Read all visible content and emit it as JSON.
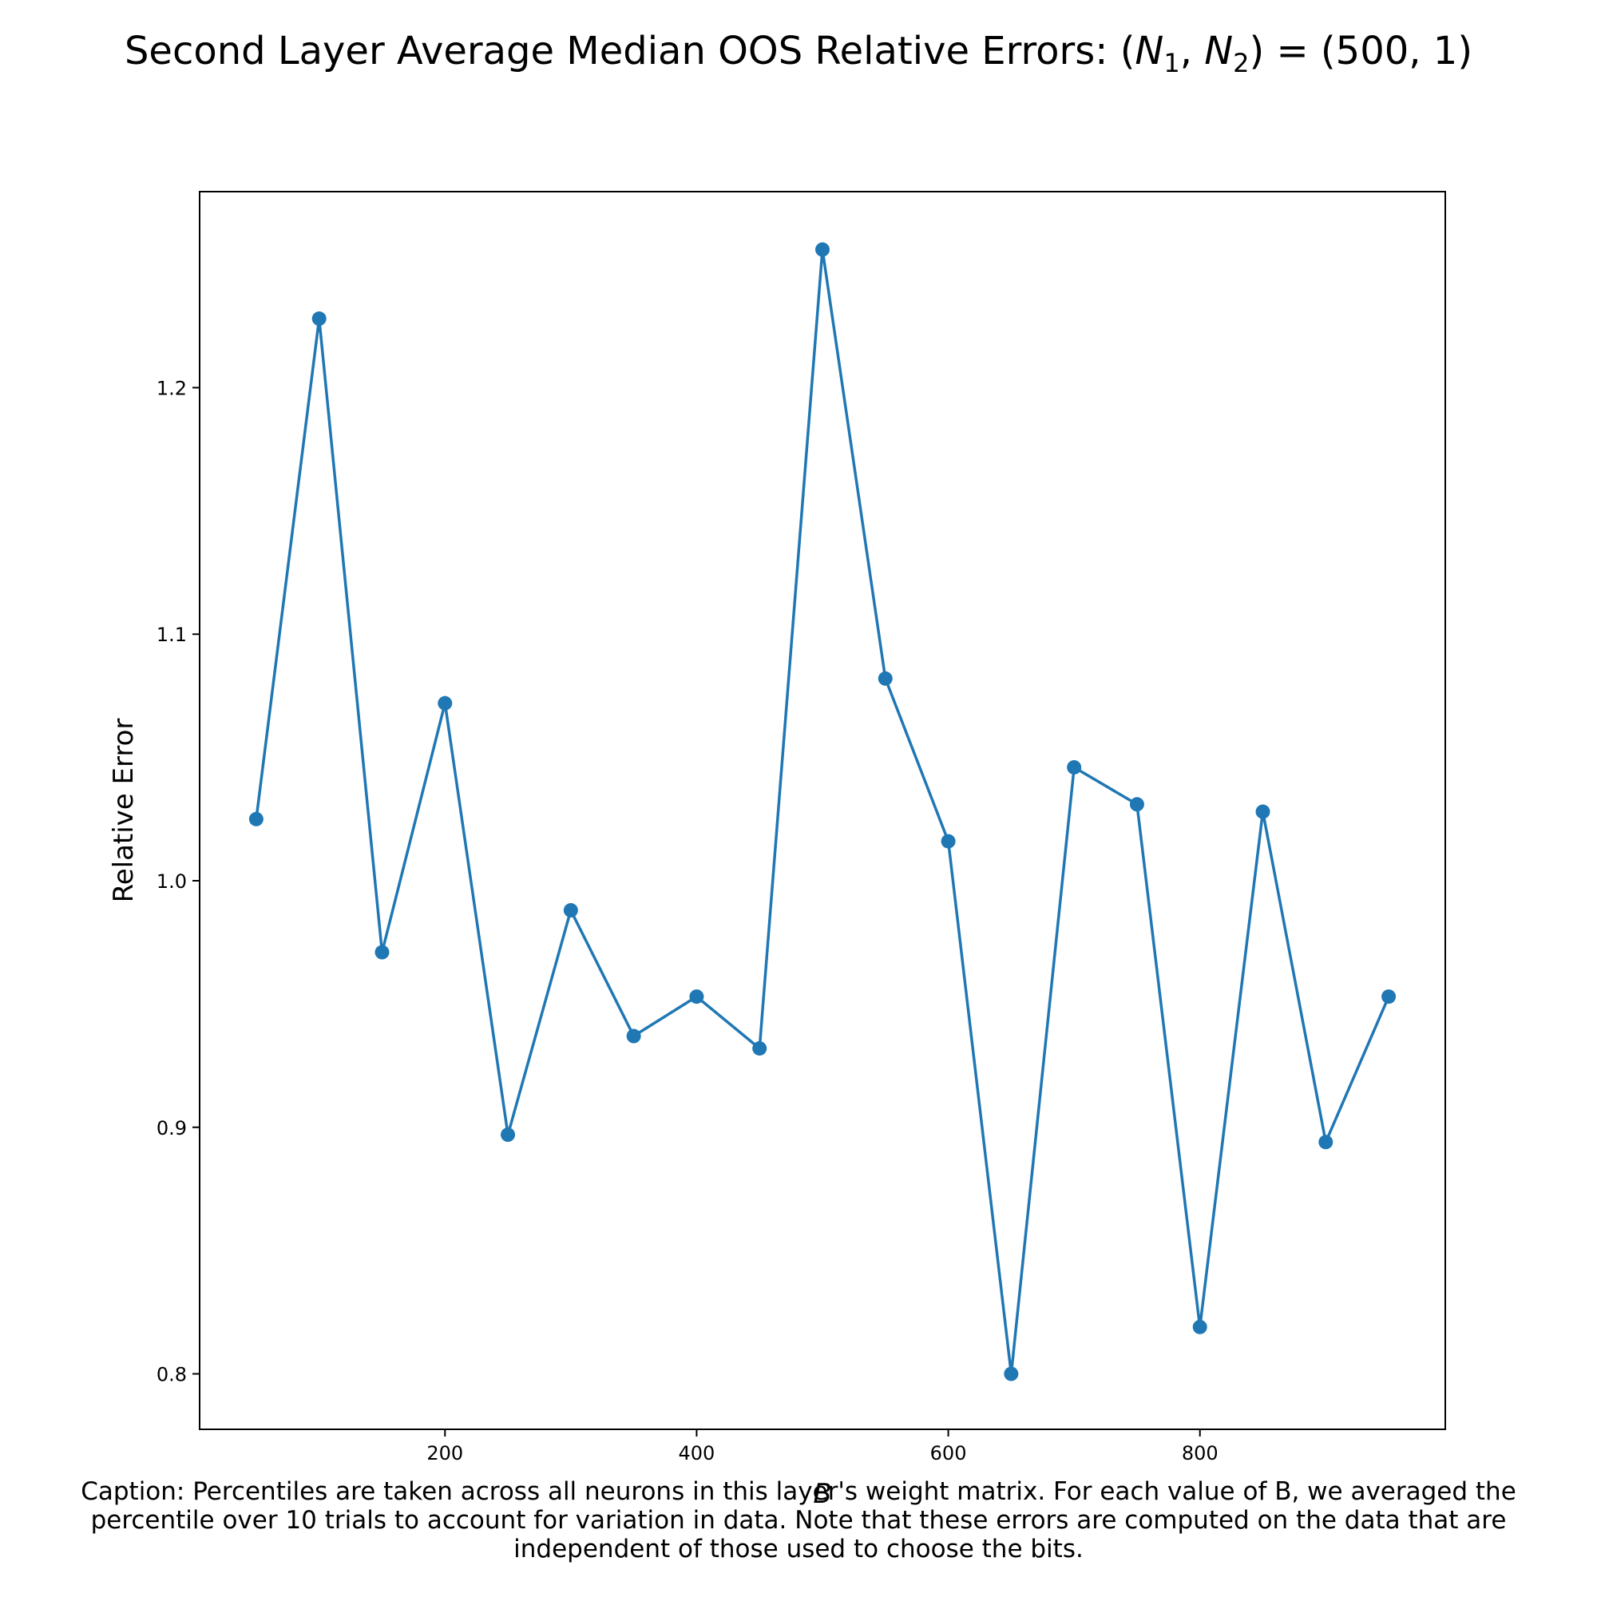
{
  "chart_data": {
    "type": "line",
    "title": {
      "prefix": "Second Layer Average Median OOS Relative Errors: (",
      "n1": "N",
      "n1_sub": "1",
      "sep": ", ",
      "n2": "N",
      "n2_sub": "2",
      "suffix": ") = (500, 1)"
    },
    "xlabel": "B",
    "ylabel": "Relative Error",
    "xlim": [
      5,
      995
    ],
    "ylim": [
      0.7775,
      1.2795
    ],
    "xticks": [
      200,
      400,
      600,
      800
    ],
    "xtick_labels": [
      "200",
      "400",
      "600",
      "800"
    ],
    "yticks": [
      0.8,
      0.9,
      1.0,
      1.1,
      1.2
    ],
    "ytick_labels": [
      "0.8",
      "0.9",
      "1.0",
      "1.1",
      "1.2"
    ],
    "grid": false,
    "color": "#1f77b4",
    "series": [
      {
        "x": [
          50,
          100,
          150,
          200,
          250,
          300,
          350,
          400,
          450,
          500,
          550,
          600,
          650,
          700,
          750,
          800,
          850,
          900,
          950
        ],
        "y": [
          1.025,
          1.228,
          0.971,
          1.072,
          0.897,
          0.988,
          0.937,
          0.953,
          0.932,
          1.256,
          1.082,
          1.016,
          0.8,
          1.046,
          1.031,
          0.819,
          1.028,
          0.894,
          0.953
        ]
      }
    ]
  },
  "caption": {
    "lines": [
      "Caption: Percentiles are taken across all neurons in this layer's weight matrix. For each value of B, we averaged the",
      "percentile over 10 trials to account for variation in data. Note that these errors are computed on the data that are",
      "independent of those used to choose the bits."
    ]
  }
}
